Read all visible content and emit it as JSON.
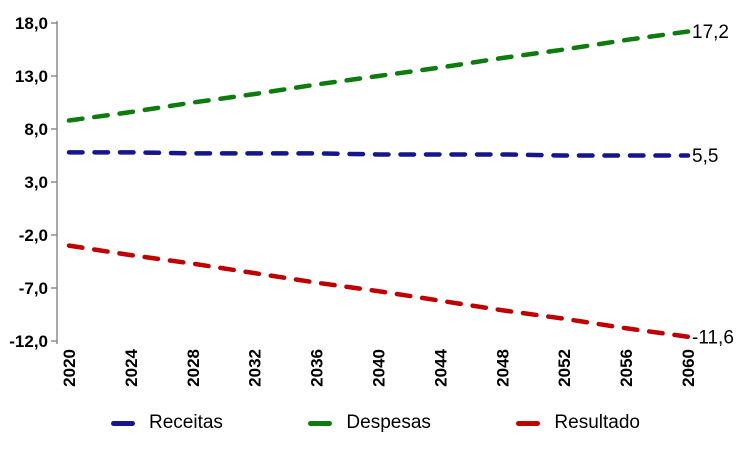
{
  "chart_data": {
    "type": "line",
    "title": "",
    "xlabel": "",
    "ylabel": "",
    "x": [
      2020,
      2024,
      2028,
      2032,
      2036,
      2040,
      2044,
      2048,
      2052,
      2056,
      2060
    ],
    "x_tick_labels": [
      "2020",
      "2024",
      "2028",
      "2032",
      "2036",
      "2040",
      "2044",
      "2048",
      "2052",
      "2056",
      "2060"
    ],
    "y_ticks": [
      {
        "value": 18,
        "label": "18,0"
      },
      {
        "value": 13,
        "label": "13,0"
      },
      {
        "value": 8,
        "label": "8,0"
      },
      {
        "value": 3,
        "label": "3,0"
      },
      {
        "value": -2,
        "label": "-2,0"
      },
      {
        "value": -7,
        "label": "-7,0"
      },
      {
        "value": -12,
        "label": "-12,0"
      }
    ],
    "ylim": [
      -12,
      18
    ],
    "grid": false,
    "line_style": "dashed",
    "legend_position": "bottom",
    "axis_color": "#858585",
    "text_color": "#000000",
    "series": [
      {
        "id": "receitas",
        "name": "Receitas",
        "color": "#16168C",
        "end_label": "5,5",
        "values": [
          5.8,
          5.8,
          5.7,
          5.7,
          5.7,
          5.6,
          5.6,
          5.6,
          5.5,
          5.5,
          5.5
        ]
      },
      {
        "id": "despesas",
        "name": "Despesas",
        "color": "#0E7B0E",
        "end_label": "17,2",
        "values": [
          8.8,
          9.6,
          10.5,
          11.3,
          12.2,
          13.0,
          13.8,
          14.7,
          15.5,
          16.4,
          17.2
        ]
      },
      {
        "id": "resultado",
        "name": "Resultado",
        "color": "#C00000",
        "end_label": "-11,6",
        "values": [
          -3.0,
          -3.9,
          -4.7,
          -5.6,
          -6.5,
          -7.3,
          -8.2,
          -9.1,
          -9.9,
          -10.8,
          -11.6
        ]
      }
    ]
  }
}
